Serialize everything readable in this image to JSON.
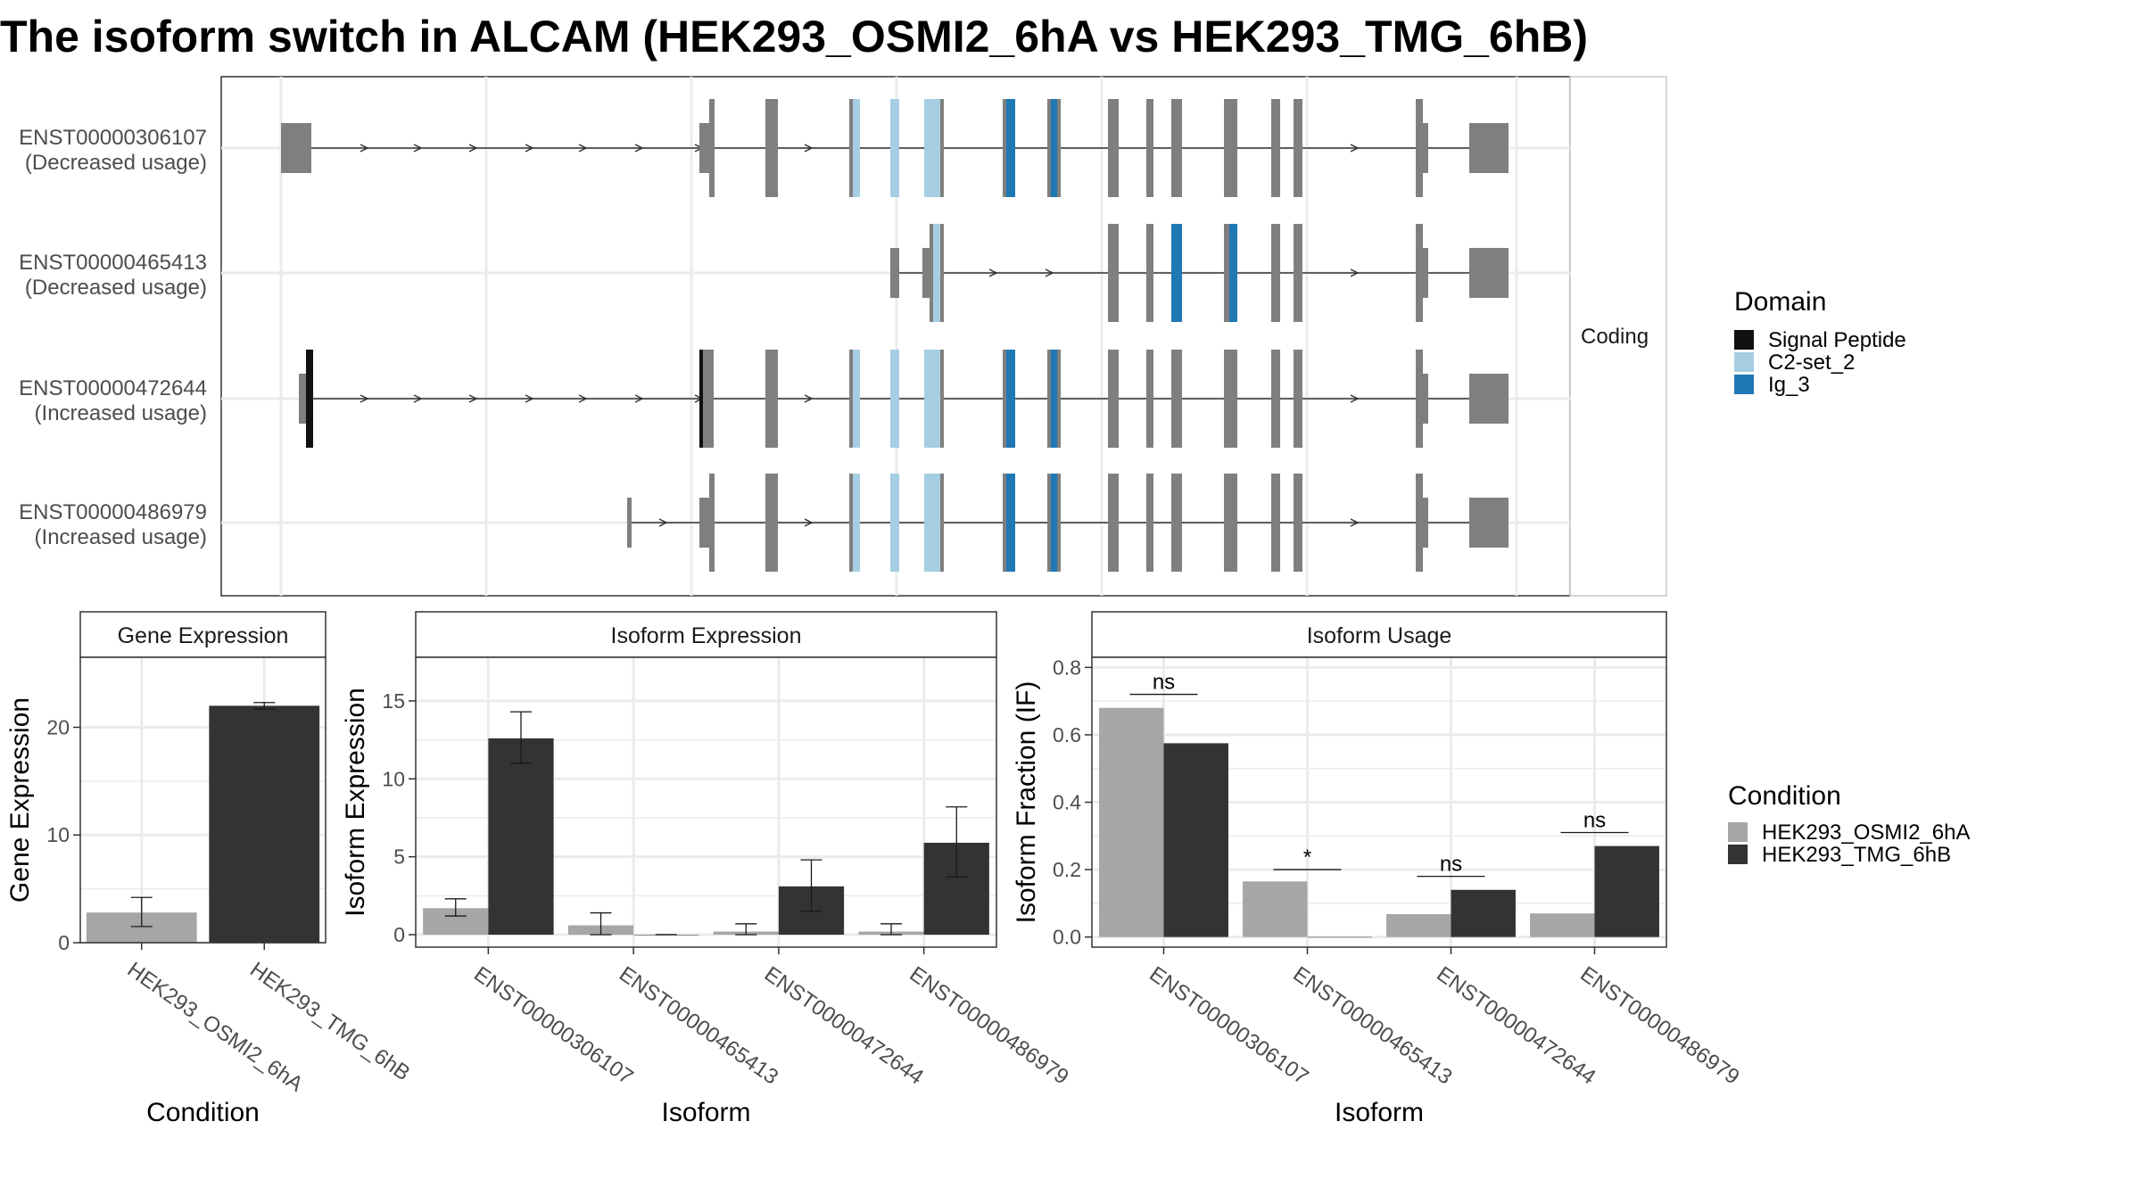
{
  "title": "The isoform switch in ALCAM (HEK293_OSMI2_6hA vs HEK293_TMG_6hB)",
  "colors": {
    "exon": "#7f7f7f",
    "intron": "#333333",
    "signal_peptide": "#111111",
    "c2set2": "#a6cee3",
    "ig3": "#1f78b4",
    "cond_a": "#a6a6a6",
    "cond_b": "#333333",
    "grid": "#ebebeb",
    "frame": "#333333",
    "strip": "#ffffff"
  },
  "structure": {
    "strip_label": "Coding",
    "isoforms": [
      {
        "id": "ENST00000306107",
        "usage": "(Decreased usage)"
      },
      {
        "id": "ENST00000465413",
        "usage": "(Decreased usage)"
      },
      {
        "id": "ENST00000472644",
        "usage": "(Increased usage)"
      },
      {
        "id": "ENST00000486979",
        "usage": "(Increased usage)"
      }
    ]
  },
  "domain_legend": {
    "title": "Domain",
    "items": [
      {
        "label": "Signal Peptide",
        "color_key": "signal_peptide"
      },
      {
        "label": "C2-set_2",
        "color_key": "c2set2"
      },
      {
        "label": "Ig_3",
        "color_key": "ig3"
      }
    ]
  },
  "condition_legend": {
    "title": "Condition",
    "items": [
      {
        "label": "HEK293_OSMI2_6hA",
        "color_key": "cond_a"
      },
      {
        "label": "HEK293_TMG_6hB",
        "color_key": "cond_b"
      }
    ]
  },
  "chart_data": [
    {
      "type": "bar",
      "title": "Gene Expression",
      "xlabel": "Condition",
      "ylabel": "Gene Expression",
      "ylim": [
        0,
        26.5
      ],
      "yticks": [
        0,
        10,
        20
      ],
      "categories": [
        "HEK293_OSMI2_6hA",
        "HEK293_TMG_6hB"
      ],
      "series": [
        {
          "name": "HEK293_OSMI2_6hA",
          "values": [
            2.8,
            null
          ],
          "err_low": [
            1.5,
            null
          ],
          "err_high": [
            4.2,
            null
          ]
        },
        {
          "name": "HEK293_TMG_6hB",
          "values": [
            null,
            22.0
          ],
          "err_low": [
            null,
            21.7
          ],
          "err_high": [
            null,
            22.3
          ]
        }
      ]
    },
    {
      "type": "bar",
      "title": "Isoform Expression",
      "xlabel": "Isoform",
      "ylabel": "Isoform Expression",
      "ylim": [
        -0.8,
        17.8
      ],
      "yticks": [
        0,
        5,
        10,
        15
      ],
      "categories": [
        "ENST00000306107",
        "ENST00000465413",
        "ENST00000472644",
        "ENST00000486979"
      ],
      "series": [
        {
          "name": "HEK293_OSMI2_6hA",
          "values": [
            1.7,
            0.6,
            0.2,
            0.2
          ],
          "err_low": [
            1.2,
            0.0,
            0.0,
            0.0
          ],
          "err_high": [
            2.3,
            1.4,
            0.7,
            0.7
          ]
        },
        {
          "name": "HEK293_TMG_6hB",
          "values": [
            12.6,
            0.0,
            3.1,
            5.9
          ],
          "err_low": [
            11.0,
            0.0,
            1.5,
            3.7
          ],
          "err_high": [
            14.3,
            0.0,
            4.8,
            8.2
          ]
        }
      ]
    },
    {
      "type": "bar",
      "title": "Isoform Usage",
      "xlabel": "Isoform",
      "ylabel": "Isoform Fraction (IF)",
      "ylim": [
        -0.03,
        0.83
      ],
      "yticks": [
        0.0,
        0.2,
        0.4,
        0.6,
        0.8
      ],
      "ytick_labels": [
        "0.0",
        "0.2",
        "0.4",
        "0.6",
        "0.8"
      ],
      "categories": [
        "ENST00000306107",
        "ENST00000465413",
        "ENST00000472644",
        "ENST00000486979"
      ],
      "series": [
        {
          "name": "HEK293_OSMI2_6hA",
          "values": [
            0.68,
            0.165,
            0.068,
            0.07
          ]
        },
        {
          "name": "HEK293_TMG_6hB",
          "values": [
            0.575,
            0.0,
            0.14,
            0.27
          ]
        }
      ],
      "significance": [
        "ns",
        "*",
        "ns",
        "ns"
      ],
      "significance_y": [
        0.72,
        0.2,
        0.18,
        0.31
      ]
    }
  ]
}
